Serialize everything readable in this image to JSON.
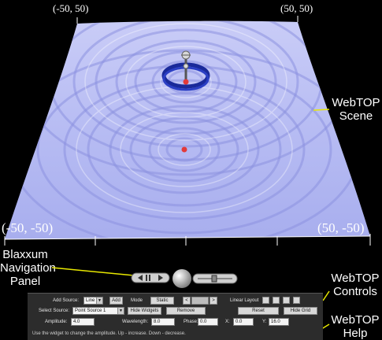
{
  "scene": {
    "corner_labels": {
      "top_left": "(-50, 50)",
      "top_right": "(50, 50)",
      "bottom_left": "(-50, -50)",
      "bottom_right": "(50, -50)"
    },
    "surface_color": "#bcc0f5",
    "source_marker_color": "#e23a3a",
    "widget_ring_color": "#1a2a9a"
  },
  "callouts": {
    "webtop_scene": [
      "WebTOP",
      "Scene"
    ],
    "blaxxun_panel": [
      "Blaxxum",
      "Navigation",
      "Panel"
    ],
    "webtop_controls": [
      "WebTOP",
      "Controls"
    ],
    "webtop_help": [
      "WebTOP",
      "Help"
    ],
    "line_color": "#e8e800"
  },
  "controls": {
    "add_source_label": "Add Source:",
    "add_source_value": "Line",
    "add_button": "Add",
    "mode_label": "Mode",
    "mode_value": "Static",
    "linear_layout_label": "Linear Layout",
    "select_source_label": "Select Source:",
    "select_source_value": "Point Source 1",
    "hide_widgets_button": "Hide Widgets",
    "remove_button": "Remove",
    "reset_button": "Reset",
    "hide_grid_button": "Hide Grid",
    "amplitude_label": "Amplitude:",
    "amplitude_value": "4.0",
    "wavelength_label": "Wavelength:",
    "wavelength_value": "8.0",
    "phase_label": "Phase:",
    "phase_value": "0.0",
    "x_label": "X:",
    "x_value": "0.0",
    "y_label": "Y:",
    "y_value": "16.0",
    "help_text": "Use the widget to change the amplitude.  Up - increase.  Down - decrease."
  }
}
